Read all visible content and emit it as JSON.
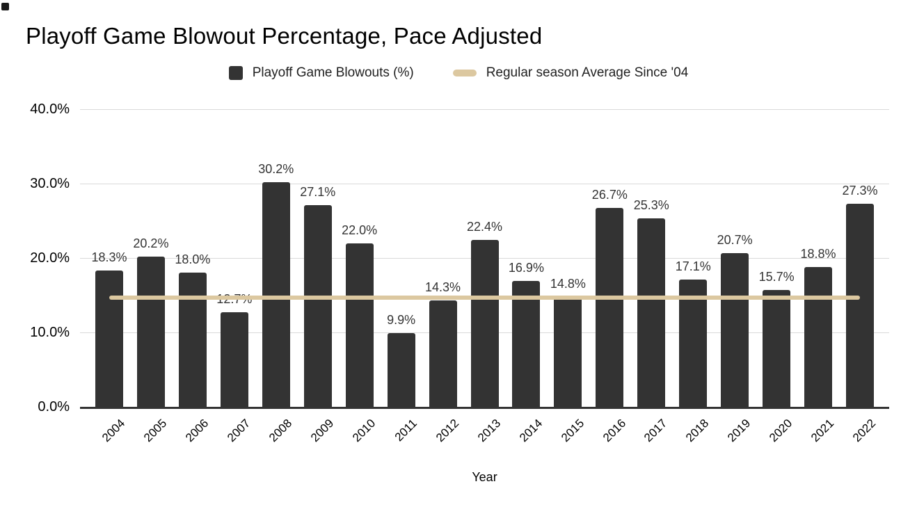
{
  "page": {
    "title": "Playoff Game Blowout Percentage, Pace Adjusted",
    "xlabel": "Year"
  },
  "legend": {
    "items": [
      {
        "label": "Playoff Game Blowouts (%)",
        "color": "#333333",
        "shape": "square"
      },
      {
        "label": "Regular season Average Since '04",
        "color": "#DCC8A0",
        "shape": "line"
      }
    ]
  },
  "chart_data": {
    "type": "bar",
    "title": "Playoff Game Blowout Percentage, Pace Adjusted",
    "categories": [
      "2004",
      "2005",
      "2006",
      "2007",
      "2008",
      "2009",
      "2010",
      "2011",
      "2012",
      "2013",
      "2014",
      "2015",
      "2016",
      "2017",
      "2018",
      "2019",
      "2020",
      "2021",
      "2022"
    ],
    "series": [
      {
        "name": "Playoff Game Blowouts (%)",
        "type": "bar",
        "color": "#333333",
        "values": [
          18.3,
          20.2,
          18.0,
          12.7,
          30.2,
          27.1,
          22.0,
          9.9,
          14.3,
          22.4,
          16.9,
          14.8,
          26.7,
          25.3,
          17.1,
          20.7,
          15.7,
          18.8,
          27.3
        ],
        "data_labels": [
          "18.3%",
          "20.2%",
          "18.0%",
          "12.7%",
          "30.2%",
          "27.1%",
          "22.0%",
          "9.9%",
          "14.3%",
          "22.4%",
          "16.9%",
          "14.8%",
          "26.7%",
          "25.3%",
          "17.1%",
          "20.7%",
          "15.7%",
          "18.8%",
          "27.3%"
        ]
      },
      {
        "name": "Regular season Average Since '04",
        "type": "line",
        "color": "#DCC8A0",
        "value": 14.7
      }
    ],
    "xlabel": "Year",
    "ylabel": "",
    "ylim": [
      0,
      40
    ],
    "yticks": [
      {
        "value": 0,
        "label": "0.0%"
      },
      {
        "value": 10,
        "label": "10.0%"
      },
      {
        "value": 20,
        "label": "20.0%"
      },
      {
        "value": 30,
        "label": "30.0%"
      },
      {
        "value": 40,
        "label": "40.0%"
      }
    ],
    "grid": true,
    "legend_position": "top"
  },
  "colors": {
    "background": "#ffffff",
    "gridline": "#d9d9d9",
    "axis_line": "#333333",
    "bar": "#333333",
    "average_line": "#DCC8A0"
  }
}
